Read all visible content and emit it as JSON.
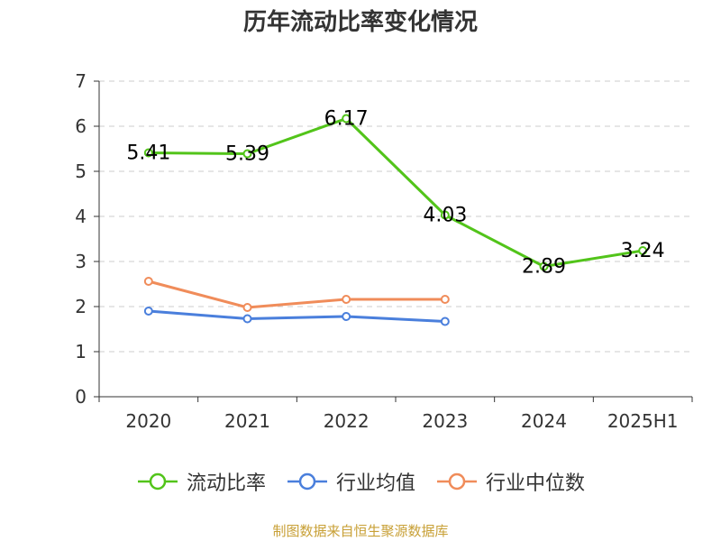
{
  "title": "历年流动比率变化情况",
  "source": "制图数据来自恒生聚源数据库",
  "colors": {
    "source_text": "#c8a036",
    "axis": "#333333",
    "grid": "#cccccc"
  },
  "legend": [
    {
      "name": "流动比率",
      "color": "#52c41a"
    },
    {
      "name": "行业均值",
      "color": "#4a7fdc"
    },
    {
      "name": "行业中位数",
      "color": "#f08c5a"
    }
  ],
  "chart_data": {
    "type": "line",
    "categories": [
      "2020",
      "2021",
      "2022",
      "2023",
      "2024",
      "2025H1"
    ],
    "ylim": [
      0,
      7
    ],
    "yticks": [
      "0",
      "1",
      "2",
      "3",
      "4",
      "5",
      "6",
      "7"
    ],
    "grid": true,
    "legend_position": "bottom",
    "series": [
      {
        "name": "流动比率",
        "color": "#52c41a",
        "values": [
          5.41,
          5.39,
          6.17,
          4.03,
          2.89,
          3.24
        ],
        "labels": [
          "5.41",
          "5.39",
          "6.17",
          "4.03",
          "2.89",
          "3.24"
        ]
      },
      {
        "name": "行业均值",
        "color": "#4a7fdc",
        "values": [
          1.9,
          1.73,
          1.78,
          1.67,
          null,
          null
        ]
      },
      {
        "name": "行业中位数",
        "color": "#f08c5a",
        "values": [
          2.56,
          1.98,
          2.16,
          2.16,
          null,
          null
        ]
      }
    ]
  }
}
